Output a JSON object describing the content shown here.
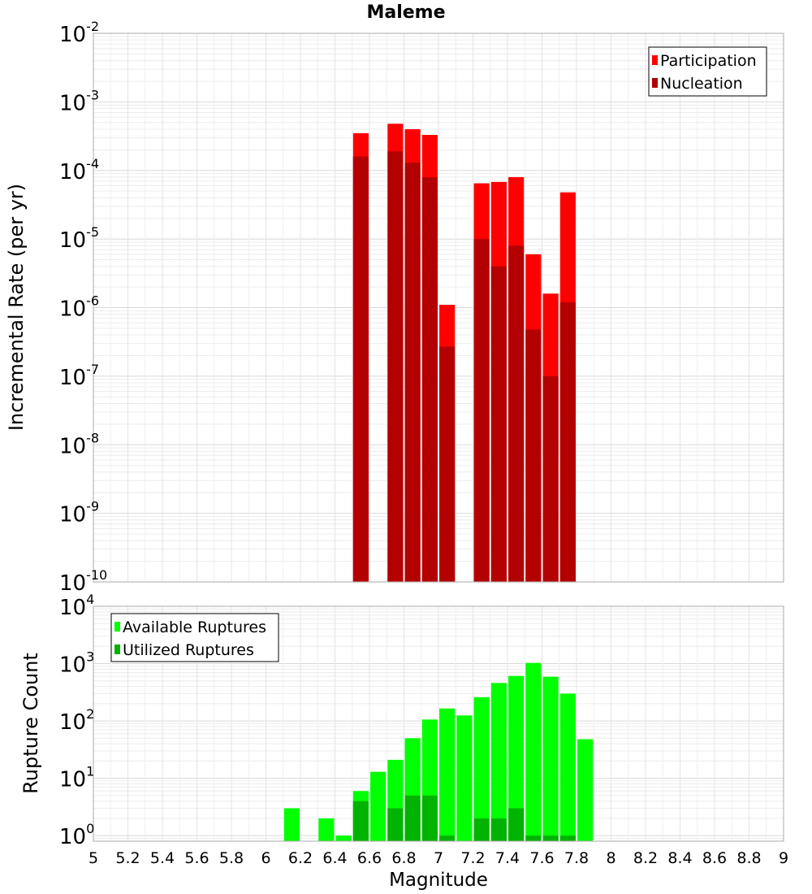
{
  "chart_data": [
    {
      "type": "bar",
      "title": "Maleme",
      "ylabel": "Incremental Rate (per yr)",
      "xlabel": "",
      "xlim": [
        5,
        9
      ],
      "ylim": [
        1e-10,
        0.01
      ],
      "yscale": "log",
      "grid": true,
      "legend_position": "top-right",
      "y_tick_exponents": [
        "-10",
        "-9",
        "-8",
        "-7",
        "-6",
        "-5",
        "-4",
        "-3",
        "-2"
      ],
      "y_tick_base": "10",
      "bar_width": 0.09,
      "series": [
        {
          "name": "Participation",
          "color": "#ff0000",
          "x": [
            6.55,
            6.75,
            6.85,
            6.95,
            7.05,
            7.25,
            7.35,
            7.45,
            7.55,
            7.65,
            7.75
          ],
          "values": [
            0.00035,
            0.00048,
            0.0004,
            0.00033,
            1.1e-06,
            6.5e-05,
            6.8e-05,
            8e-05,
            6e-06,
            1.6e-06,
            4.8e-05
          ]
        },
        {
          "name": "Nucleation",
          "color": "#b30000",
          "x": [
            6.55,
            6.75,
            6.85,
            6.95,
            7.05,
            7.25,
            7.35,
            7.45,
            7.55,
            7.65,
            7.75
          ],
          "values": [
            0.00016,
            0.00019,
            0.00013,
            8e-05,
            2.7e-07,
            1e-05,
            4e-06,
            8e-06,
            4.8e-07,
            1e-07,
            1.2e-06
          ]
        }
      ]
    },
    {
      "type": "bar",
      "title": "",
      "ylabel": "Rupture Count",
      "xlabel": "Magnitude",
      "xlim": [
        5,
        9
      ],
      "ylim": [
        0.8,
        10000.0
      ],
      "yscale": "log",
      "grid": true,
      "legend_position": "top-left",
      "x_ticks": [
        "5",
        "5.2",
        "5.4",
        "5.6",
        "5.8",
        "6",
        "6.2",
        "6.4",
        "6.6",
        "6.8",
        "7",
        "7.2",
        "7.4",
        "7.6",
        "7.8",
        "8",
        "8.2",
        "8.4",
        "8.6",
        "8.8",
        "9"
      ],
      "y_tick_exponents": [
        "0",
        "1",
        "2",
        "3",
        "4"
      ],
      "y_tick_base": "10",
      "bar_width": 0.09,
      "series": [
        {
          "name": "Available Ruptures",
          "color": "#00ff00",
          "x": [
            6.15,
            6.35,
            6.45,
            6.55,
            6.65,
            6.75,
            6.85,
            6.95,
            7.05,
            7.15,
            7.25,
            7.35,
            7.45,
            7.55,
            7.65,
            7.75,
            7.85
          ],
          "values": [
            3,
            2,
            1,
            6,
            13,
            21,
            50,
            106,
            165,
            125,
            260,
            460,
            610,
            1030,
            590,
            300,
            48
          ]
        },
        {
          "name": "Utilized Ruptures",
          "color": "#00b300",
          "x": [
            6.55,
            6.75,
            6.85,
            6.95,
            7.05,
            7.25,
            7.35,
            7.45,
            7.55,
            7.65,
            7.75
          ],
          "values": [
            4,
            3,
            5,
            5,
            1,
            2,
            2,
            3,
            1,
            1,
            1
          ]
        }
      ]
    }
  ]
}
